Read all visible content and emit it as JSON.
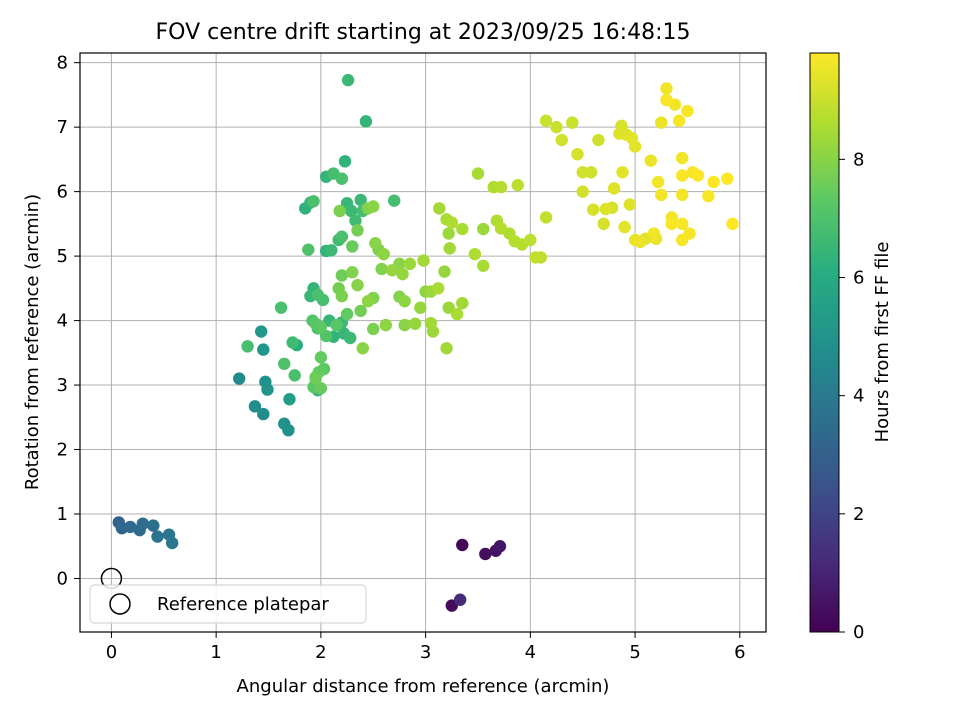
{
  "chart_data": {
    "type": "scatter",
    "title": "FOV centre drift starting at 2023/09/25 16:48:15",
    "xlabel": "Angular distance from reference (arcmin)",
    "ylabel": "Rotation from reference (arcmin)",
    "xlim": [
      -0.3,
      6.25
    ],
    "ylim": [
      -0.83,
      8.15
    ],
    "xticks": [
      0,
      1,
      2,
      3,
      4,
      5,
      6
    ],
    "yticks": [
      0,
      1,
      2,
      3,
      4,
      5,
      6,
      7,
      8
    ],
    "grid": true,
    "colormap": "viridis",
    "colorbar": {
      "label": "Hours from first FF file",
      "range": [
        0,
        9.8
      ],
      "ticks": [
        0,
        2,
        4,
        6,
        8
      ]
    },
    "legend": {
      "placement": "lower-left",
      "entries": [
        {
          "label": "Reference platepar",
          "marker": "open-circle"
        }
      ]
    },
    "reference_point": {
      "x": 0,
      "y": 0
    },
    "points": [
      {
        "x": 3.35,
        "y": 0.52,
        "c": 0.2
      },
      {
        "x": 3.25,
        "y": -0.42,
        "c": 0.3
      },
      {
        "x": 3.33,
        "y": -0.33,
        "c": 1.2
      },
      {
        "x": 3.57,
        "y": 0.38,
        "c": 0.4
      },
      {
        "x": 3.67,
        "y": 0.43,
        "c": 0.5
      },
      {
        "x": 3.71,
        "y": 0.5,
        "c": 0.6
      },
      {
        "x": 0.07,
        "y": 0.87,
        "c": 3.1
      },
      {
        "x": 0.1,
        "y": 0.78,
        "c": 3.2
      },
      {
        "x": 0.18,
        "y": 0.8,
        "c": 3.3
      },
      {
        "x": 0.27,
        "y": 0.75,
        "c": 3.4
      },
      {
        "x": 0.3,
        "y": 0.85,
        "c": 3.5
      },
      {
        "x": 0.4,
        "y": 0.82,
        "c": 3.6
      },
      {
        "x": 0.44,
        "y": 0.65,
        "c": 3.7
      },
      {
        "x": 0.55,
        "y": 0.68,
        "c": 3.8
      },
      {
        "x": 0.58,
        "y": 0.55,
        "c": 3.9
      },
      {
        "x": 1.22,
        "y": 3.1,
        "c": 4.6
      },
      {
        "x": 1.37,
        "y": 2.67,
        "c": 4.7
      },
      {
        "x": 1.45,
        "y": 2.55,
        "c": 4.8
      },
      {
        "x": 1.47,
        "y": 3.05,
        "c": 4.9
      },
      {
        "x": 1.49,
        "y": 2.93,
        "c": 5.0
      },
      {
        "x": 1.45,
        "y": 3.55,
        "c": 5.1
      },
      {
        "x": 1.43,
        "y": 3.83,
        "c": 5.2
      },
      {
        "x": 1.65,
        "y": 2.4,
        "c": 5.0
      },
      {
        "x": 1.69,
        "y": 2.3,
        "c": 4.9
      },
      {
        "x": 1.7,
        "y": 2.78,
        "c": 5.4
      },
      {
        "x": 1.3,
        "y": 3.6,
        "c": 6.8
      },
      {
        "x": 1.62,
        "y": 4.2,
        "c": 6.9
      },
      {
        "x": 1.65,
        "y": 3.33,
        "c": 7.0
      },
      {
        "x": 1.73,
        "y": 3.66,
        "c": 6.7
      },
      {
        "x": 1.77,
        "y": 3.62,
        "c": 6.1
      },
      {
        "x": 1.75,
        "y": 3.15,
        "c": 6.9
      },
      {
        "x": 1.85,
        "y": 5.74,
        "c": 6.3
      },
      {
        "x": 1.9,
        "y": 5.83,
        "c": 6.4
      },
      {
        "x": 1.93,
        "y": 5.85,
        "c": 6.9
      },
      {
        "x": 2.05,
        "y": 6.23,
        "c": 6.4
      },
      {
        "x": 2.12,
        "y": 6.28,
        "c": 6.8
      },
      {
        "x": 2.2,
        "y": 6.2,
        "c": 6.9
      },
      {
        "x": 2.23,
        "y": 6.47,
        "c": 6.3
      },
      {
        "x": 2.26,
        "y": 7.73,
        "c": 6.6
      },
      {
        "x": 2.43,
        "y": 7.09,
        "c": 6.4
      },
      {
        "x": 1.88,
        "y": 5.1,
        "c": 7.0
      },
      {
        "x": 1.97,
        "y": 4.4,
        "c": 6.9
      },
      {
        "x": 1.93,
        "y": 4.5,
        "c": 6.4
      },
      {
        "x": 1.9,
        "y": 4.38,
        "c": 6.5
      },
      {
        "x": 2.02,
        "y": 4.32,
        "c": 6.8
      },
      {
        "x": 2.05,
        "y": 5.08,
        "c": 6.3
      },
      {
        "x": 2.1,
        "y": 5.09,
        "c": 6.6
      },
      {
        "x": 2.17,
        "y": 5.25,
        "c": 6.7
      },
      {
        "x": 2.2,
        "y": 5.3,
        "c": 6.9
      },
      {
        "x": 1.92,
        "y": 4.0,
        "c": 7.1
      },
      {
        "x": 1.95,
        "y": 3.95,
        "c": 7.2
      },
      {
        "x": 1.97,
        "y": 3.88,
        "c": 7.0
      },
      {
        "x": 2.0,
        "y": 3.9,
        "c": 7.3
      },
      {
        "x": 2.05,
        "y": 3.76,
        "c": 7.1
      },
      {
        "x": 2.08,
        "y": 4.0,
        "c": 6.5
      },
      {
        "x": 2.12,
        "y": 3.75,
        "c": 6.4
      },
      {
        "x": 2.15,
        "y": 3.93,
        "c": 7.2
      },
      {
        "x": 2.2,
        "y": 3.97,
        "c": 6.6
      },
      {
        "x": 2.22,
        "y": 3.8,
        "c": 6.5
      },
      {
        "x": 2.28,
        "y": 3.73,
        "c": 6.6
      },
      {
        "x": 1.93,
        "y": 2.97,
        "c": 7.2
      },
      {
        "x": 1.95,
        "y": 3.12,
        "c": 7.3
      },
      {
        "x": 1.97,
        "y": 2.92,
        "c": 6.5
      },
      {
        "x": 1.98,
        "y": 3.2,
        "c": 7.4
      },
      {
        "x": 2.0,
        "y": 2.95,
        "c": 7.5
      },
      {
        "x": 2.0,
        "y": 3.43,
        "c": 7.4
      },
      {
        "x": 2.03,
        "y": 3.25,
        "c": 7.3
      },
      {
        "x": 1.95,
        "y": 3.1,
        "c": 7.6
      },
      {
        "x": 2.25,
        "y": 5.82,
        "c": 6.5
      },
      {
        "x": 2.29,
        "y": 5.7,
        "c": 6.6
      },
      {
        "x": 2.33,
        "y": 5.55,
        "c": 6.7
      },
      {
        "x": 2.38,
        "y": 5.87,
        "c": 6.6
      },
      {
        "x": 2.4,
        "y": 5.7,
        "c": 6.8
      },
      {
        "x": 2.35,
        "y": 5.4,
        "c": 7.7
      },
      {
        "x": 2.3,
        "y": 5.15,
        "c": 7.5
      },
      {
        "x": 2.18,
        "y": 5.7,
        "c": 7.8
      },
      {
        "x": 2.45,
        "y": 5.74,
        "c": 7.9
      },
      {
        "x": 2.5,
        "y": 5.77,
        "c": 8.0
      },
      {
        "x": 2.2,
        "y": 4.7,
        "c": 7.6
      },
      {
        "x": 2.17,
        "y": 4.5,
        "c": 7.7
      },
      {
        "x": 2.2,
        "y": 4.38,
        "c": 7.8
      },
      {
        "x": 2.25,
        "y": 4.1,
        "c": 7.4
      },
      {
        "x": 2.3,
        "y": 4.75,
        "c": 7.9
      },
      {
        "x": 2.35,
        "y": 4.55,
        "c": 8.0
      },
      {
        "x": 2.38,
        "y": 4.15,
        "c": 7.7
      },
      {
        "x": 2.4,
        "y": 3.57,
        "c": 8.0
      },
      {
        "x": 2.45,
        "y": 4.3,
        "c": 8.1
      },
      {
        "x": 2.5,
        "y": 4.35,
        "c": 7.9
      },
      {
        "x": 2.52,
        "y": 5.2,
        "c": 8.0
      },
      {
        "x": 2.55,
        "y": 5.1,
        "c": 7.8
      },
      {
        "x": 2.58,
        "y": 4.8,
        "c": 7.9
      },
      {
        "x": 2.6,
        "y": 5.03,
        "c": 8.1
      },
      {
        "x": 2.62,
        "y": 3.93,
        "c": 8.1
      },
      {
        "x": 2.5,
        "y": 3.87,
        "c": 7.8
      },
      {
        "x": 2.68,
        "y": 4.78,
        "c": 8.2
      },
      {
        "x": 2.7,
        "y": 5.86,
        "c": 6.8
      },
      {
        "x": 2.75,
        "y": 4.88,
        "c": 8.0
      },
      {
        "x": 2.78,
        "y": 4.72,
        "c": 8.2
      },
      {
        "x": 2.8,
        "y": 4.3,
        "c": 8.1
      },
      {
        "x": 2.85,
        "y": 4.88,
        "c": 8.3
      },
      {
        "x": 2.8,
        "y": 3.93,
        "c": 8.0
      },
      {
        "x": 2.9,
        "y": 3.95,
        "c": 8.2
      },
      {
        "x": 2.75,
        "y": 4.37,
        "c": 7.9
      },
      {
        "x": 2.95,
        "y": 4.2,
        "c": 8.2
      },
      {
        "x": 2.98,
        "y": 4.93,
        "c": 8.4
      },
      {
        "x": 3.0,
        "y": 4.45,
        "c": 8.1
      },
      {
        "x": 3.05,
        "y": 4.45,
        "c": 8.3
      },
      {
        "x": 3.05,
        "y": 3.96,
        "c": 8.4
      },
      {
        "x": 3.07,
        "y": 3.83,
        "c": 8.3
      },
      {
        "x": 3.12,
        "y": 4.5,
        "c": 8.5
      },
      {
        "x": 3.18,
        "y": 4.76,
        "c": 8.2
      },
      {
        "x": 3.2,
        "y": 3.57,
        "c": 8.4
      },
      {
        "x": 3.22,
        "y": 4.2,
        "c": 8.3
      },
      {
        "x": 3.3,
        "y": 4.1,
        "c": 8.5
      },
      {
        "x": 3.35,
        "y": 4.27,
        "c": 8.4
      },
      {
        "x": 3.13,
        "y": 5.74,
        "c": 8.4
      },
      {
        "x": 3.2,
        "y": 5.57,
        "c": 8.5
      },
      {
        "x": 3.22,
        "y": 5.35,
        "c": 8.3
      },
      {
        "x": 3.25,
        "y": 5.52,
        "c": 8.6
      },
      {
        "x": 3.23,
        "y": 5.12,
        "c": 8.4
      },
      {
        "x": 3.35,
        "y": 5.42,
        "c": 8.5
      },
      {
        "x": 3.47,
        "y": 5.03,
        "c": 8.6
      },
      {
        "x": 3.5,
        "y": 6.28,
        "c": 8.5
      },
      {
        "x": 3.55,
        "y": 4.85,
        "c": 8.5
      },
      {
        "x": 3.55,
        "y": 5.42,
        "c": 8.3
      },
      {
        "x": 3.65,
        "y": 6.07,
        "c": 8.6
      },
      {
        "x": 3.72,
        "y": 6.07,
        "c": 8.7
      },
      {
        "x": 3.68,
        "y": 5.55,
        "c": 8.6
      },
      {
        "x": 3.72,
        "y": 5.43,
        "c": 8.7
      },
      {
        "x": 3.8,
        "y": 5.35,
        "c": 8.6
      },
      {
        "x": 3.85,
        "y": 5.23,
        "c": 8.7
      },
      {
        "x": 3.88,
        "y": 6.1,
        "c": 8.8
      },
      {
        "x": 3.92,
        "y": 5.18,
        "c": 8.7
      },
      {
        "x": 4.0,
        "y": 5.25,
        "c": 8.8
      },
      {
        "x": 4.05,
        "y": 4.98,
        "c": 8.9
      },
      {
        "x": 4.1,
        "y": 4.98,
        "c": 8.8
      },
      {
        "x": 4.15,
        "y": 5.6,
        "c": 8.9
      },
      {
        "x": 4.15,
        "y": 7.1,
        "c": 9.0
      },
      {
        "x": 4.25,
        "y": 7.0,
        "c": 9.0
      },
      {
        "x": 4.3,
        "y": 6.8,
        "c": 9.1
      },
      {
        "x": 4.4,
        "y": 7.07,
        "c": 9.0
      },
      {
        "x": 4.45,
        "y": 6.58,
        "c": 9.2
      },
      {
        "x": 4.5,
        "y": 6.0,
        "c": 9.1
      },
      {
        "x": 4.5,
        "y": 6.3,
        "c": 9.1
      },
      {
        "x": 4.58,
        "y": 6.3,
        "c": 9.1
      },
      {
        "x": 4.6,
        "y": 5.72,
        "c": 9.2
      },
      {
        "x": 4.65,
        "y": 6.8,
        "c": 9.1
      },
      {
        "x": 4.7,
        "y": 5.5,
        "c": 9.2
      },
      {
        "x": 4.72,
        "y": 5.73,
        "c": 9.3
      },
      {
        "x": 4.78,
        "y": 5.75,
        "c": 9.2
      },
      {
        "x": 4.8,
        "y": 6.05,
        "c": 9.3
      },
      {
        "x": 4.85,
        "y": 6.9,
        "c": 9.3
      },
      {
        "x": 4.87,
        "y": 7.02,
        "c": 9.2
      },
      {
        "x": 4.88,
        "y": 6.3,
        "c": 9.4
      },
      {
        "x": 4.9,
        "y": 5.45,
        "c": 9.4
      },
      {
        "x": 4.92,
        "y": 6.88,
        "c": 9.3
      },
      {
        "x": 4.97,
        "y": 6.83,
        "c": 9.4
      },
      {
        "x": 4.95,
        "y": 5.8,
        "c": 9.3
      },
      {
        "x": 5.0,
        "y": 6.7,
        "c": 9.4
      },
      {
        "x": 5.0,
        "y": 5.25,
        "c": 9.5
      },
      {
        "x": 5.05,
        "y": 5.22,
        "c": 9.5
      },
      {
        "x": 5.1,
        "y": 5.27,
        "c": 9.4
      },
      {
        "x": 5.15,
        "y": 6.48,
        "c": 9.5
      },
      {
        "x": 5.18,
        "y": 5.35,
        "c": 9.6
      },
      {
        "x": 5.2,
        "y": 5.27,
        "c": 9.5
      },
      {
        "x": 5.22,
        "y": 6.15,
        "c": 9.6
      },
      {
        "x": 5.25,
        "y": 7.07,
        "c": 9.5
      },
      {
        "x": 5.25,
        "y": 5.95,
        "c": 9.6
      },
      {
        "x": 5.3,
        "y": 7.6,
        "c": 9.6
      },
      {
        "x": 5.3,
        "y": 7.42,
        "c": 9.7
      },
      {
        "x": 5.35,
        "y": 5.6,
        "c": 9.6
      },
      {
        "x": 5.35,
        "y": 5.5,
        "c": 9.7
      },
      {
        "x": 5.38,
        "y": 7.35,
        "c": 9.6
      },
      {
        "x": 5.42,
        "y": 7.1,
        "c": 9.7
      },
      {
        "x": 5.45,
        "y": 6.52,
        "c": 9.6
      },
      {
        "x": 5.45,
        "y": 6.25,
        "c": 9.7
      },
      {
        "x": 5.45,
        "y": 5.95,
        "c": 9.6
      },
      {
        "x": 5.45,
        "y": 5.5,
        "c": 9.7
      },
      {
        "x": 5.45,
        "y": 5.25,
        "c": 9.7
      },
      {
        "x": 5.5,
        "y": 7.25,
        "c": 9.7
      },
      {
        "x": 5.52,
        "y": 5.35,
        "c": 9.7
      },
      {
        "x": 5.55,
        "y": 6.3,
        "c": 9.7
      },
      {
        "x": 5.6,
        "y": 6.25,
        "c": 9.8
      },
      {
        "x": 5.7,
        "y": 5.93,
        "c": 9.7
      },
      {
        "x": 5.75,
        "y": 6.15,
        "c": 9.8
      },
      {
        "x": 5.88,
        "y": 6.2,
        "c": 9.8
      },
      {
        "x": 5.93,
        "y": 5.5,
        "c": 9.8
      }
    ]
  }
}
